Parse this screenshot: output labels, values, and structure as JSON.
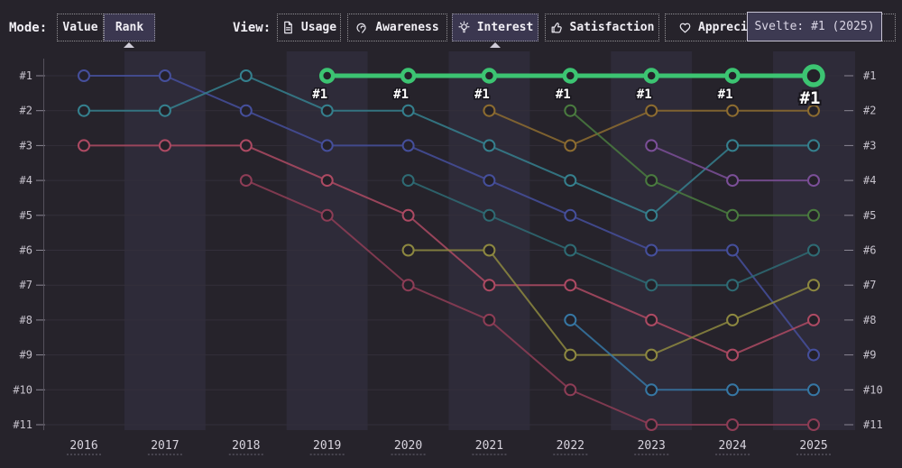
{
  "toolbar": {
    "mode_label": "Mode:",
    "modes": [
      {
        "label": "Value",
        "selected": false
      },
      {
        "label": "Rank",
        "selected": true
      }
    ],
    "view_label": "View:",
    "views": [
      {
        "label": "Usage",
        "icon": "document-icon",
        "selected": false
      },
      {
        "label": "Awareness",
        "icon": "ear-icon",
        "selected": false
      },
      {
        "label": "Interest",
        "icon": "lightbulb-icon",
        "selected": true
      },
      {
        "label": "Satisfaction",
        "icon": "thumbs-up-icon",
        "selected": false
      },
      {
        "label": "Appreciation",
        "icon": "heart-icon",
        "selected": false
      }
    ],
    "tooltip": "Svelte: #1 (2025)"
  },
  "chart_data": {
    "type": "line",
    "subtype": "bump-rank",
    "x_labels": [
      "2016",
      "2017",
      "2018",
      "2019",
      "2020",
      "2021",
      "2022",
      "2023",
      "2024",
      "2025"
    ],
    "y_labels_left": [
      "#1",
      "#2",
      "#3",
      "#4",
      "#5",
      "#6",
      "#7",
      "#8",
      "#9",
      "#10",
      "#11"
    ],
    "y_labels_right": [
      "#1",
      "#2",
      "#3",
      "#4",
      "#5",
      "#6",
      "#7",
      "#8",
      "#9",
      "#10",
      "#11"
    ],
    "ylim": [
      1,
      11
    ],
    "grid": true,
    "colors": {
      "band": "#2e2b39",
      "grid": "#332f3b",
      "axis": "#55515c",
      "tick": "#8a8693",
      "point_fill": "#242129",
      "highlight": "#3cc472"
    },
    "highlight_tooltip": "Svelte: #1 (2025)",
    "series": [
      {
        "id": "indigo-line",
        "color": "#454f9c",
        "highlight": false,
        "ranks": [
          1,
          1,
          2,
          3,
          3,
          4,
          5,
          6,
          6,
          9
        ]
      },
      {
        "id": "teal-line",
        "color": "#35808e",
        "highlight": false,
        "ranks": [
          2,
          2,
          1,
          2,
          2,
          3,
          4,
          5,
          3,
          3
        ]
      },
      {
        "id": "red-line",
        "color": "#ad4a63",
        "highlight": false,
        "ranks": [
          3,
          3,
          3,
          4,
          5,
          7,
          7,
          8,
          9,
          8
        ]
      },
      {
        "id": "maroon-line",
        "color": "#8e3d56",
        "highlight": false,
        "ranks": [
          null,
          null,
          4,
          5,
          7,
          8,
          10,
          11,
          11,
          11
        ]
      },
      {
        "id": "dark-teal-line",
        "color": "#2e6b74",
        "highlight": false,
        "ranks": [
          null,
          null,
          null,
          null,
          4,
          5,
          6,
          7,
          7,
          6
        ]
      },
      {
        "id": "olive-line",
        "color": "#8d8840",
        "highlight": false,
        "ranks": [
          null,
          null,
          null,
          null,
          6,
          6,
          9,
          9,
          8,
          7
        ]
      },
      {
        "id": "amber-line",
        "color": "#8d6c30",
        "highlight": false,
        "ranks": [
          null,
          null,
          null,
          null,
          null,
          2,
          3,
          2,
          2,
          2
        ]
      },
      {
        "id": "green-line",
        "color": "#4a7b3f",
        "highlight": false,
        "ranks": [
          null,
          null,
          null,
          null,
          null,
          null,
          2,
          4,
          5,
          5
        ]
      },
      {
        "id": "steel-blue-line",
        "color": "#3677a4",
        "highlight": false,
        "ranks": [
          null,
          null,
          null,
          null,
          null,
          null,
          8,
          10,
          10,
          10
        ]
      },
      {
        "id": "purple-line",
        "color": "#7b4f98",
        "highlight": false,
        "ranks": [
          null,
          null,
          null,
          null,
          null,
          null,
          null,
          3,
          4,
          4
        ]
      },
      {
        "id": "svelte-line",
        "name": "Svelte",
        "color": "#3cc472",
        "highlight": true,
        "ranks": [
          null,
          null,
          null,
          1,
          1,
          1,
          1,
          1,
          1,
          1
        ]
      }
    ]
  }
}
